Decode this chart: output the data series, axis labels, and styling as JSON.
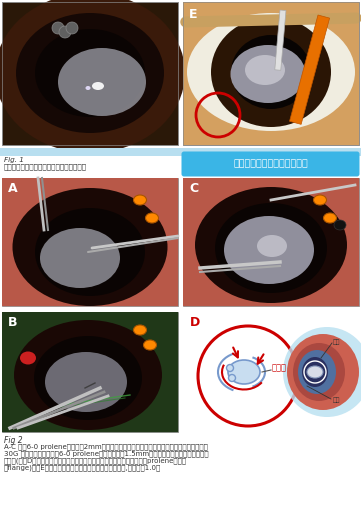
{
  "bg_color": "#ffffff",
  "fig1_caption_line1": "Fig. 1",
  "fig1_caption_line2": "案例中的日本人其人工水晶體偏位至外下方",
  "blue_box_text": "人工水晶體回復至中央的位置",
  "blue_box_color": "#3ab5e6",
  "fig2_caption": "Fig 2",
  "fig2_line1": "A-C 使用6-0 prolene線距輪部2mm，從人工水晶體下方引線，然後走人工水晶體前方，使用",
  "fig2_line2": "30G 導引針頭，將原本的6-0 prolene線導出距輪部1.5mm的鞏膜處出來，形成一個開放式",
  "fig2_line3": "懸吊環(如同D圖卡通圖的紅線，紅線上兩個圓圈的突起即是利用電燒筆燒灼prolene線產生",
  "fig2_line4": "的flange)，圖E為術後病人的人工水晶體回復至中央的位置,視力可達1.0。",
  "label_A": "A",
  "label_B": "B",
  "label_C": "C",
  "label_D": "D",
  "label_E": "E",
  "crystal_label": "水晶體",
  "cornea_label": "角膜",
  "iris_label": "虹膜",
  "divider_color": "#b8dff0",
  "top_left_bg": "#2a1808",
  "top_right_bg": "#c8a870",
  "mid_photo_bg": "#b05848",
  "bot_left_bg": "#1e3a18"
}
